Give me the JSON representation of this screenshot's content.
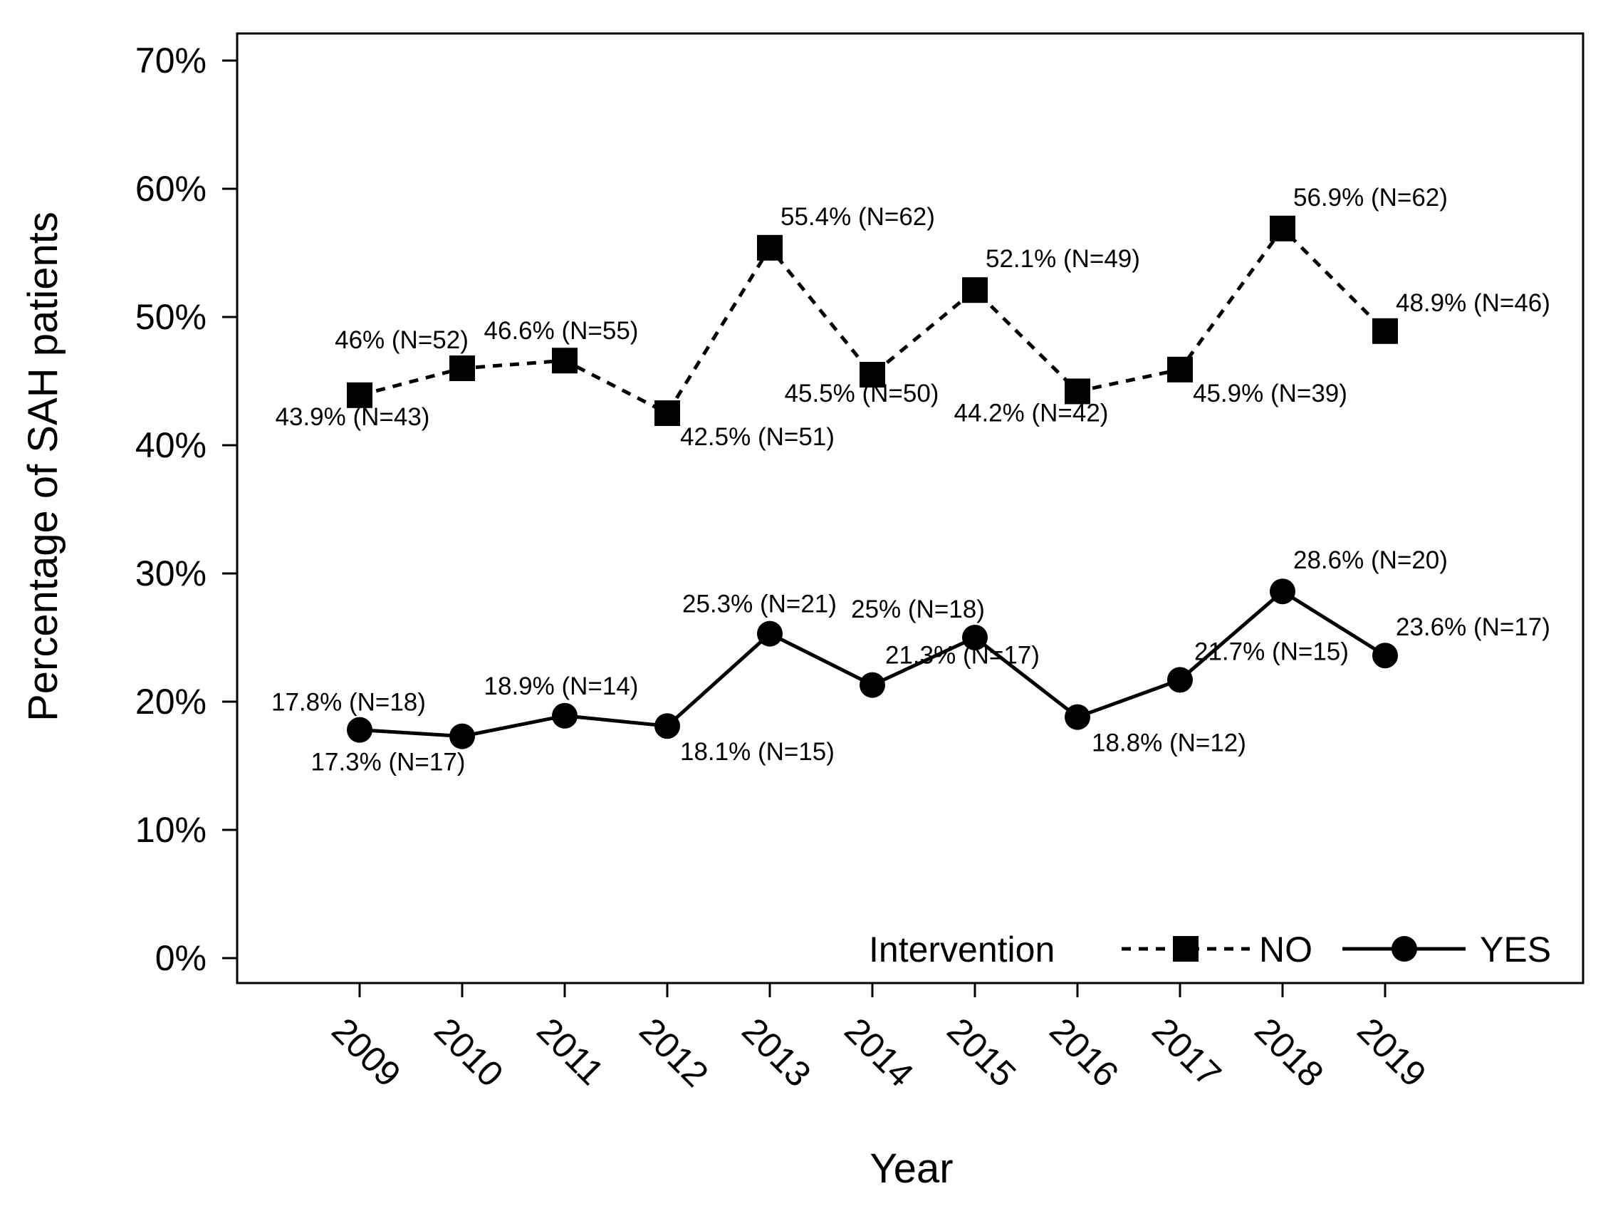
{
  "chart_data": {
    "type": "line",
    "title": "",
    "xlabel": "Year",
    "ylabel": "Percentage of SAH patients",
    "categories": [
      "2009",
      "2010",
      "2011",
      "2012",
      "2013",
      "2014",
      "2015",
      "2016",
      "2017",
      "2018",
      "2019"
    ],
    "ylim": [
      0,
      70
    ],
    "yticks": [
      0,
      10,
      20,
      30,
      40,
      50,
      60,
      70
    ],
    "ytick_labels": [
      "0%",
      "10%",
      "20%",
      "30%",
      "40%",
      "50%",
      "60%",
      "70%"
    ],
    "grid": false,
    "legend": {
      "position": "bottom-right",
      "title": "Intervention",
      "entries": [
        "NO",
        "YES"
      ]
    },
    "series": [
      {
        "name": "NO",
        "style": "dashed",
        "marker": "square",
        "color": "#000000",
        "values": [
          43.9,
          46.0,
          46.6,
          42.5,
          55.4,
          45.5,
          52.1,
          44.2,
          45.9,
          56.9,
          48.9
        ],
        "labels": [
          "43.9% (N=43)",
          "46% (N=52)",
          "46.6% (N=55)",
          "42.5% (N=51)",
          "55.4% (N=62)",
          "45.5% (N=50)",
          "52.1% (N=49)",
          "44.2% (N=42)",
          "45.9% (N=39)",
          "56.9% (N=62)",
          "48.9% (N=46)"
        ]
      },
      {
        "name": "YES",
        "style": "solid",
        "marker": "circle",
        "color": "#000000",
        "values": [
          17.8,
          17.3,
          18.9,
          18.1,
          25.3,
          21.3,
          25.0,
          18.8,
          21.7,
          28.6,
          23.6
        ],
        "labels": [
          "17.8% (N=18)",
          "17.3% (N=17)",
          "18.9% (N=14)",
          "18.1% (N=15)",
          "25.3% (N=21)",
          "21.3% (N=17)",
          "25% (N=18)",
          "18.8% (N=12)",
          "21.7% (N=15)",
          "28.6% (N=20)",
          "23.6% (N=17)"
        ]
      }
    ]
  }
}
